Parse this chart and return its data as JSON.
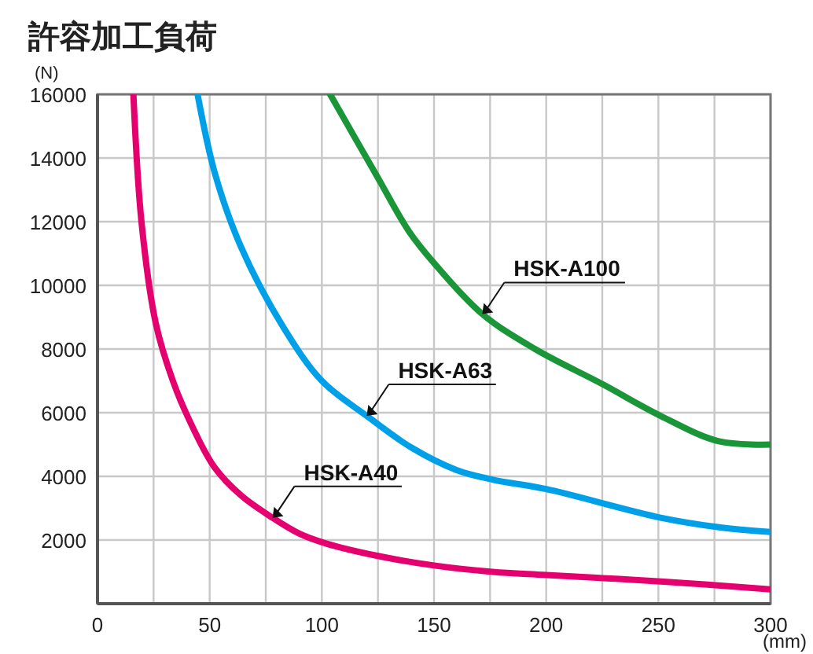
{
  "chart_data": {
    "type": "line",
    "title": "許容加工負荷",
    "ylabel": "(N)",
    "xlabel": "(mm)",
    "xlim": [
      0,
      300
    ],
    "ylim": [
      0,
      16000
    ],
    "xticks": [
      0,
      {
        "value": 25,
        "label": null
      },
      50,
      {
        "value": 75,
        "label": null
      },
      100,
      {
        "value": 125,
        "label": null
      },
      150,
      {
        "value": 175,
        "label": null
      },
      200,
      {
        "value": 225,
        "label": null
      },
      250,
      {
        "value": 275,
        "label": null
      },
      300
    ],
    "yticks": [
      2000,
      4000,
      6000,
      8000,
      10000,
      12000,
      14000,
      16000
    ],
    "grid": true,
    "line_style": "solid",
    "marker": "none",
    "series": [
      {
        "color": "#e4006e",
        "x": [
          16,
          19.6,
          26,
          33.6,
          40.7,
          52,
          64,
          78,
          90,
          101.5,
          125,
          150,
          176,
          200,
          251,
          300
        ],
        "values": [
          16000,
          12000,
          8800,
          7000,
          5800,
          4300,
          3400,
          2700,
          2200,
          1900,
          1500,
          1200,
          1000,
          900,
          700,
          450
        ]
      },
      {
        "color": "#00a0e9",
        "x": [
          44.6,
          52.4,
          64,
          82.7,
          100,
          120,
          140,
          160,
          176,
          200,
          251,
          277,
          300
        ],
        "values": [
          16000,
          13500,
          11200,
          8700,
          7000,
          5900,
          4900,
          4200,
          3900,
          3600,
          2700,
          2400,
          2250
        ]
      },
      {
        "color": "#1a9638",
        "x": [
          103.7,
          124.8,
          138.8,
          150,
          171.5,
          195,
          225,
          251,
          277,
          300
        ],
        "values": [
          16000,
          13400,
          11700,
          10700,
          9100,
          8000,
          6900,
          5900,
          5100,
          5000
        ]
      }
    ],
    "annotations": [
      {
        "text": "HSK-A100",
        "x": 171.5,
        "y": 9100
      },
      {
        "text": "HSK-A63",
        "x": 120,
        "y": 5900
      },
      {
        "text": "HSK-A40",
        "x": 78,
        "y": 2700
      }
    ]
  }
}
